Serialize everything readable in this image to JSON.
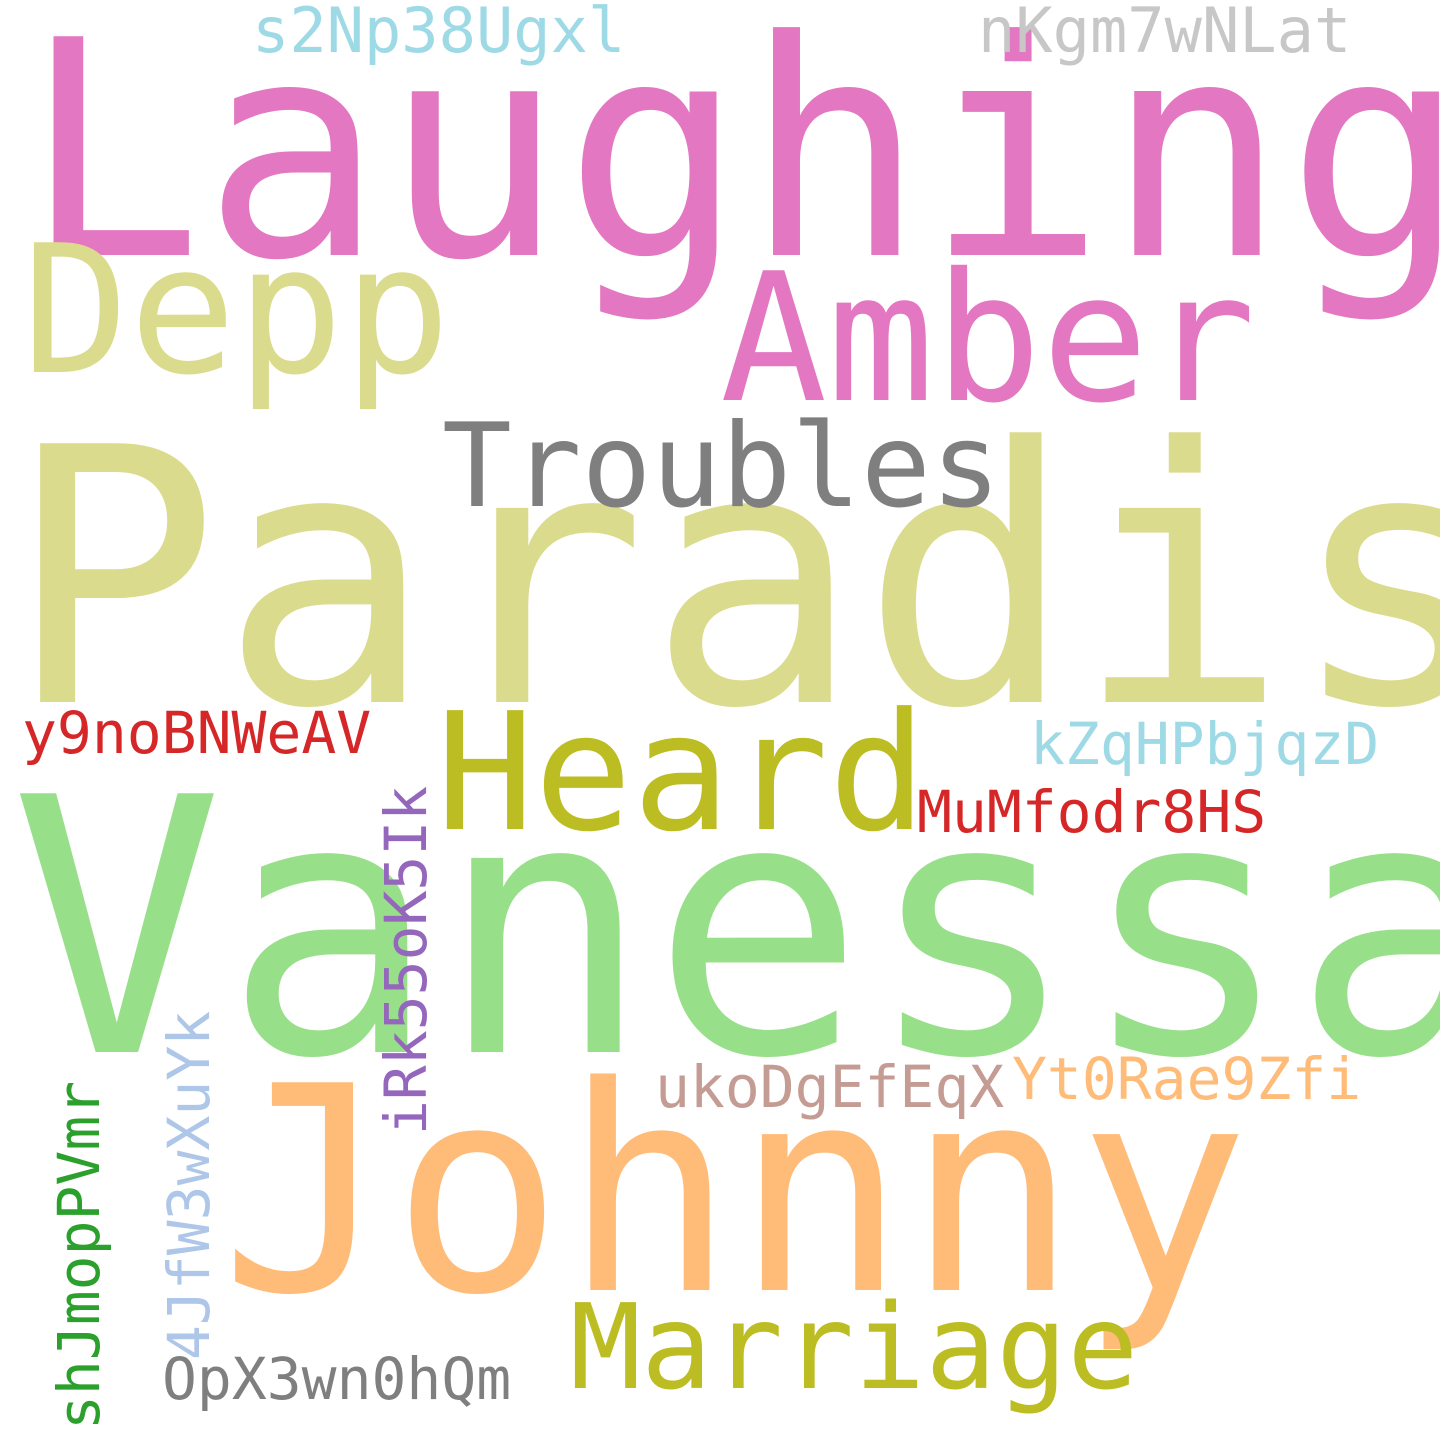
{
  "cloud": {
    "words": [
      {
        "key": "laughing",
        "text": "Laughing",
        "color": "#e377c2"
      },
      {
        "key": "paradis",
        "text": "Paradis",
        "color": "#dbdb8d"
      },
      {
        "key": "vanessa",
        "text": "Vanessa",
        "color": "#98df8a"
      },
      {
        "key": "johnny",
        "text": "Johnny",
        "color": "#ffbb78"
      },
      {
        "key": "depp",
        "text": "Depp",
        "color": "#dbdb8d"
      },
      {
        "key": "amber",
        "text": "Amber",
        "color": "#e377c2"
      },
      {
        "key": "troubles",
        "text": "Troubles",
        "color": "#7f7f7f"
      },
      {
        "key": "heard",
        "text": "Heard",
        "color": "#bcbd22"
      },
      {
        "key": "marriage",
        "text": "Marriage",
        "color": "#bcbd22"
      },
      {
        "key": "s2np",
        "text": "s2Np38Ugxl",
        "color": "#9edae5"
      },
      {
        "key": "nkgm",
        "text": "nKgm7wNLat",
        "color": "#c7c7c7"
      },
      {
        "key": "y9no",
        "text": "y9noBNWeAV",
        "color": "#d62728"
      },
      {
        "key": "kzq",
        "text": "kZqHPbjqzD",
        "color": "#9edae5"
      },
      {
        "key": "mumf",
        "text": "MuMfodr8HS",
        "color": "#d62728"
      },
      {
        "key": "uko",
        "text": "ukoDgEfEqX",
        "color": "#c49c94"
      },
      {
        "key": "yt0",
        "text": "Yt0Rae9Zfi",
        "color": "#ffbb78"
      },
      {
        "key": "opx",
        "text": "OpX3wn0hQm",
        "color": "#7f7f7f"
      },
      {
        "key": "irk",
        "text": "iRk55oK5Ik",
        "color": "#9467bd"
      },
      {
        "key": "4jf",
        "text": "4JfW3wXuYk",
        "color": "#aec7e8"
      },
      {
        "key": "shj",
        "text": "shJmopPVmr",
        "color": "#2ca02c"
      }
    ]
  }
}
